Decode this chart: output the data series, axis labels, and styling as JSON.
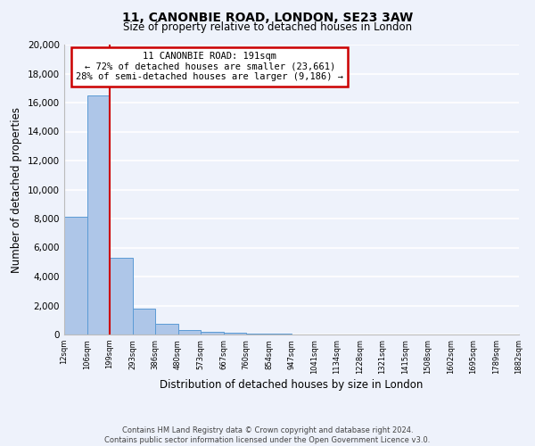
{
  "title": "11, CANONBIE ROAD, LONDON, SE23 3AW",
  "subtitle": "Size of property relative to detached houses in London",
  "xlabel": "Distribution of detached houses by size in London",
  "ylabel": "Number of detached properties",
  "bar_color": "#aec6e8",
  "bar_edge_color": "#5b9bd5",
  "background_color": "#eef2fb",
  "grid_color": "#ffffff",
  "tick_labels": [
    "12sqm",
    "106sqm",
    "199sqm",
    "293sqm",
    "386sqm",
    "480sqm",
    "573sqm",
    "667sqm",
    "760sqm",
    "854sqm",
    "947sqm",
    "1041sqm",
    "1134sqm",
    "1228sqm",
    "1321sqm",
    "1415sqm",
    "1508sqm",
    "1602sqm",
    "1695sqm",
    "1789sqm",
    "1882sqm"
  ],
  "bar_heights": [
    8100,
    16500,
    5300,
    1800,
    750,
    300,
    175,
    100,
    75,
    50,
    0,
    0,
    0,
    0,
    0,
    0,
    0,
    0,
    0,
    0
  ],
  "ylim": [
    0,
    20000
  ],
  "yticks": [
    0,
    2000,
    4000,
    6000,
    8000,
    10000,
    12000,
    14000,
    16000,
    18000,
    20000
  ],
  "property_line_x": 2,
  "annotation_text_line1": "11 CANONBIE ROAD: 191sqm",
  "annotation_text_line2": "← 72% of detached houses are smaller (23,661)",
  "annotation_text_line3": "28% of semi-detached houses are larger (9,186) →",
  "annotation_box_color": "#ffffff",
  "annotation_box_edge_color": "#cc0000",
  "property_line_color": "#cc0000",
  "footer_line1": "Contains HM Land Registry data © Crown copyright and database right 2024.",
  "footer_line2": "Contains public sector information licensed under the Open Government Licence v3.0."
}
